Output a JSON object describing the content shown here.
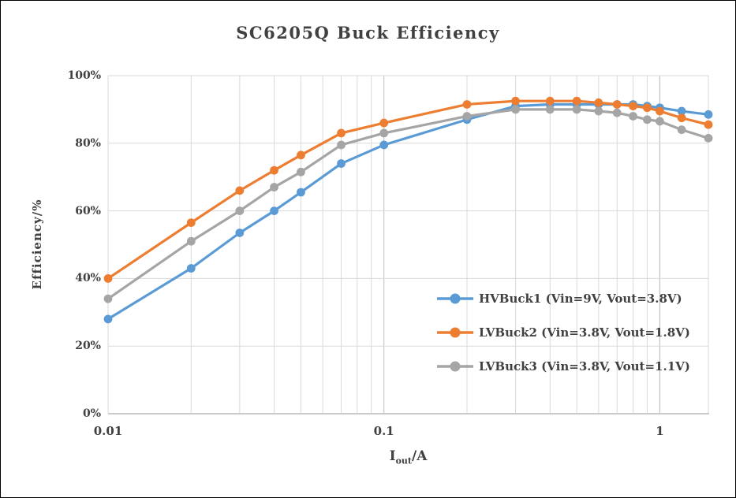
{
  "window": {
    "background": "#FFFFFF",
    "border_color": "#000000",
    "text_color": "#404040"
  },
  "chart_data": {
    "type": "line",
    "title": "SC6205Q Buck Efficiency",
    "x_axis": {
      "label_main": "I",
      "label_sub": "out",
      "label_unit": "/A",
      "scale": "log",
      "min": 0.01,
      "max": 1.5,
      "ticks": [
        {
          "value": 0.01,
          "label": "0.01"
        },
        {
          "value": 0.1,
          "label": "0.1"
        },
        {
          "value": 1,
          "label": "1"
        }
      ]
    },
    "y_axis": {
      "label": "Efficiency/%",
      "min": 0,
      "max": 100,
      "ticks": [
        {
          "value": 0,
          "label": "0%"
        },
        {
          "value": 20,
          "label": "20%"
        },
        {
          "value": 40,
          "label": "40%"
        },
        {
          "value": 60,
          "label": "60%"
        },
        {
          "value": 80,
          "label": "80%"
        },
        {
          "value": 100,
          "label": "100%"
        }
      ]
    },
    "x": [
      0.01,
      0.02,
      0.03,
      0.04,
      0.05,
      0.07,
      0.1,
      0.2,
      0.3,
      0.4,
      0.5,
      0.6,
      0.7,
      0.8,
      0.9,
      1.0,
      1.2,
      1.5
    ],
    "series": [
      {
        "name": "HVBuck1 (Vin=9V, Vout=3.8V)",
        "color": "#5B9BD5",
        "values": [
          28,
          43,
          53.5,
          60,
          65.5,
          74,
          79.5,
          87,
          91,
          91.5,
          91.5,
          91.5,
          91.5,
          91.5,
          91,
          90.5,
          89.5,
          88.5
        ]
      },
      {
        "name": "LVBuck2 (Vin=3.8V, Vout=1.8V)",
        "color": "#ED7D31",
        "values": [
          40,
          56.5,
          66,
          72,
          76.5,
          83,
          86,
          91.5,
          92.5,
          92.5,
          92.5,
          92,
          91.5,
          91,
          90.5,
          89.5,
          87.5,
          85.5
        ]
      },
      {
        "name": "LVBuck3 (Vin=3.8V, Vout=1.1V)",
        "color": "#A5A5A5",
        "values": [
          34,
          51,
          60,
          67,
          71.5,
          79.5,
          83,
          88,
          90,
          90,
          90,
          89.5,
          89,
          88,
          87,
          86.5,
          84,
          81.5
        ]
      }
    ],
    "grid": {
      "show": true,
      "minor_color": "#D9D9D9",
      "major_color": "#BFBFBF",
      "axis_color": "#C9C9C9"
    },
    "legend_position": "inside-right"
  }
}
